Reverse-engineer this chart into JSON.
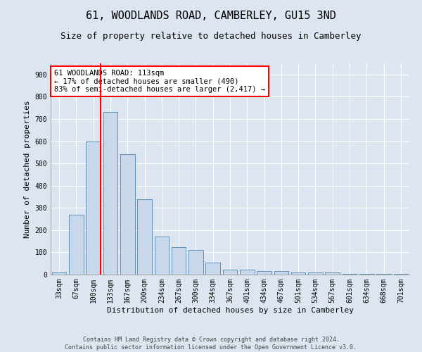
{
  "title_line1": "61, WOODLANDS ROAD, CAMBERLEY, GU15 3ND",
  "title_line2": "Size of property relative to detached houses in Camberley",
  "xlabel": "Distribution of detached houses by size in Camberley",
  "ylabel": "Number of detached properties",
  "categories": [
    "33sqm",
    "67sqm",
    "100sqm",
    "133sqm",
    "167sqm",
    "200sqm",
    "234sqm",
    "267sqm",
    "300sqm",
    "334sqm",
    "367sqm",
    "401sqm",
    "434sqm",
    "467sqm",
    "501sqm",
    "534sqm",
    "567sqm",
    "601sqm",
    "634sqm",
    "668sqm",
    "701sqm"
  ],
  "bar_values": [
    10,
    270,
    600,
    730,
    540,
    340,
    170,
    125,
    110,
    55,
    22,
    22,
    15,
    15,
    10,
    8,
    10,
    3,
    3,
    3,
    3
  ],
  "bar_color": "#c8d8ea",
  "bar_edge_color": "#6090b8",
  "vline_color": "red",
  "vline_pos": 2.43,
  "annotation_line1": "61 WOODLANDS ROAD: 113sqm",
  "annotation_line2": "← 17% of detached houses are smaller (490)",
  "annotation_line3": "83% of semi-detached houses are larger (2,417) →",
  "annotation_box_color": "white",
  "annotation_box_edge": "red",
  "ylim": [
    0,
    950
  ],
  "yticks": [
    0,
    100,
    200,
    300,
    400,
    500,
    600,
    700,
    800,
    900
  ],
  "background_color": "#dde6f0",
  "plot_bg_color": "#dde6f0",
  "footer": "Contains HM Land Registry data © Crown copyright and database right 2024.\nContains public sector information licensed under the Open Government Licence v3.0.",
  "title_fontsize": 11,
  "subtitle_fontsize": 9,
  "axis_label_fontsize": 8,
  "tick_fontsize": 7,
  "annotation_fontsize": 7.5
}
